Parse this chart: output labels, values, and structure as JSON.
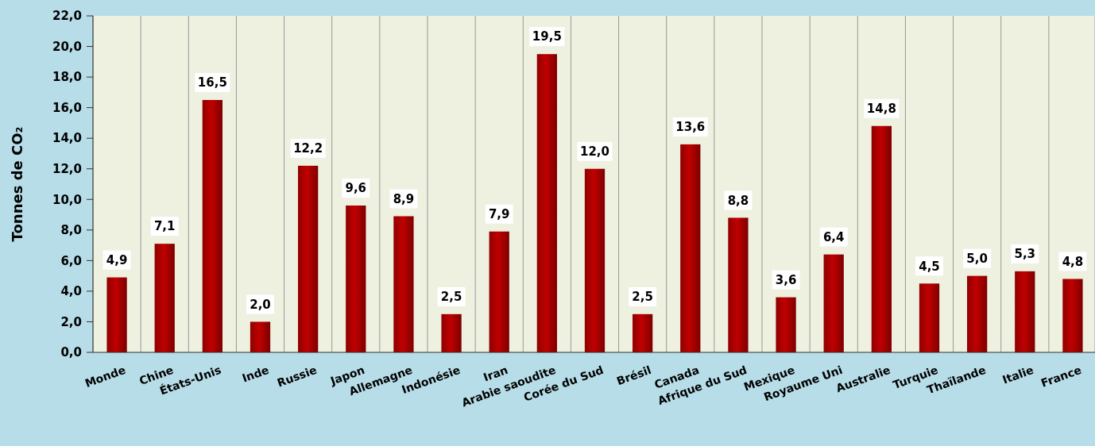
{
  "chart_data": {
    "type": "bar",
    "ylabel": "Tonnes de CO₂",
    "categories": [
      "Monde",
      "Chine",
      "États-Unis",
      "Inde",
      "Russie",
      "Japon",
      "Allemagne",
      "Indonésie",
      "Iran",
      "Arabie saoudite",
      "Corée du Sud",
      "Brésil",
      "Canada",
      "Afrique du Sud",
      "Mexique",
      "Royaume Uni",
      "Australie",
      "Turquie",
      "Thaïlande",
      "Italie",
      "France"
    ],
    "values": [
      4.9,
      7.1,
      16.5,
      2.0,
      12.2,
      9.6,
      8.9,
      2.5,
      7.9,
      19.5,
      12.0,
      2.5,
      13.6,
      8.8,
      3.6,
      6.4,
      14.8,
      4.5,
      5.0,
      5.3,
      4.8
    ],
    "value_labels": [
      "4,9",
      "7,1",
      "16,5",
      "2,0",
      "12,2",
      "9,6",
      "8,9",
      "2,5",
      "7,9",
      "19,5",
      "12,0",
      "2,5",
      "13,6",
      "8,8",
      "3,6",
      "6,4",
      "14,8",
      "4,5",
      "5,0",
      "5,3",
      "4,8"
    ],
    "color": "#c00000",
    "ylim": [
      0,
      22
    ],
    "yticks": [
      {
        "value": 0,
        "label": "0,0"
      },
      {
        "value": 2,
        "label": "2,0"
      },
      {
        "value": 4,
        "label": "4,0"
      },
      {
        "value": 6,
        "label": "6,0"
      },
      {
        "value": 8,
        "label": "8,0"
      },
      {
        "value": 10,
        "label": "10,0"
      },
      {
        "value": 12,
        "label": "12,0"
      },
      {
        "value": 14,
        "label": "14,0"
      },
      {
        "value": 16,
        "label": "16,0"
      },
      {
        "value": 18,
        "label": "18,0"
      },
      {
        "value": 20,
        "label": "20,0"
      },
      {
        "value": 22,
        "label": "22,0"
      }
    ],
    "grid": "x"
  }
}
